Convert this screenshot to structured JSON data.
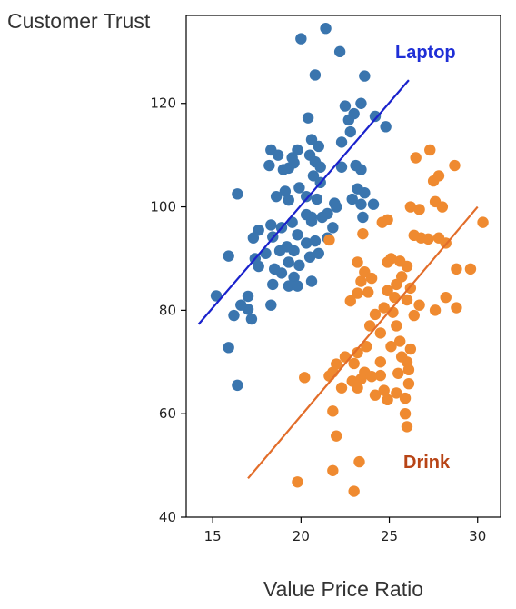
{
  "chart_data": {
    "type": "scatter",
    "title": "",
    "xlabel": "Value Price Ratio",
    "ylabel": "Customer Trust",
    "xlim": [
      13.5,
      31.3
    ],
    "ylim": [
      40,
      137
    ],
    "xticks": [
      15,
      20,
      25,
      30
    ],
    "yticks": [
      40,
      60,
      80,
      100,
      120
    ],
    "grid": false,
    "series": [
      {
        "name": "Laptop",
        "color": "#3a75ae",
        "label_color": "#1f2fd6",
        "fit_color": "#1a22cc",
        "fit_line": {
          "x": [
            14.2,
            26.1
          ],
          "y": [
            77.3,
            124.5
          ]
        },
        "points": [
          [
            20.0,
            132.5
          ],
          [
            21.4,
            134.5
          ],
          [
            22.2,
            130.0
          ],
          [
            20.8,
            125.5
          ],
          [
            23.6,
            125.3
          ],
          [
            22.5,
            119.5
          ],
          [
            23.4,
            120.0
          ],
          [
            23.0,
            118.0
          ],
          [
            22.7,
            116.8
          ],
          [
            24.2,
            117.5
          ],
          [
            24.8,
            115.5
          ],
          [
            20.4,
            117.2
          ],
          [
            22.8,
            114.5
          ],
          [
            22.3,
            112.5
          ],
          [
            21.0,
            111.7
          ],
          [
            19.8,
            111.0
          ],
          [
            20.6,
            113.0
          ],
          [
            18.3,
            111.0
          ],
          [
            18.7,
            110.0
          ],
          [
            19.5,
            109.5
          ],
          [
            19.3,
            107.5
          ],
          [
            18.2,
            108.0
          ],
          [
            19.0,
            107.2
          ],
          [
            20.5,
            110.0
          ],
          [
            20.8,
            108.7
          ],
          [
            21.1,
            107.7
          ],
          [
            19.6,
            108.5
          ],
          [
            22.3,
            107.7
          ],
          [
            23.1,
            108.0
          ],
          [
            23.4,
            107.2
          ],
          [
            20.7,
            106.0
          ],
          [
            21.1,
            104.7
          ],
          [
            19.9,
            103.7
          ],
          [
            20.3,
            102.0
          ],
          [
            19.1,
            103.0
          ],
          [
            18.6,
            102.0
          ],
          [
            19.3,
            101.3
          ],
          [
            20.9,
            101.5
          ],
          [
            21.9,
            100.7
          ],
          [
            23.2,
            103.5
          ],
          [
            23.6,
            102.7
          ],
          [
            22.9,
            101.5
          ],
          [
            23.4,
            100.5
          ],
          [
            24.1,
            100.5
          ],
          [
            21.5,
            98.7
          ],
          [
            21.2,
            98.0
          ],
          [
            20.6,
            98.0
          ],
          [
            20.3,
            98.5
          ],
          [
            20.6,
            97.2
          ],
          [
            19.5,
            97.0
          ],
          [
            18.9,
            96.0
          ],
          [
            18.3,
            96.5
          ],
          [
            18.4,
            94.2
          ],
          [
            17.6,
            95.5
          ],
          [
            17.3,
            94.0
          ],
          [
            16.4,
            102.5
          ],
          [
            19.8,
            94.6
          ],
          [
            20.3,
            93.0
          ],
          [
            20.8,
            93.4
          ],
          [
            21.5,
            94.0
          ],
          [
            19.2,
            92.3
          ],
          [
            18.8,
            91.5
          ],
          [
            19.6,
            91.5
          ],
          [
            18.0,
            91.0
          ],
          [
            17.4,
            90.0
          ],
          [
            17.6,
            88.5
          ],
          [
            18.5,
            88.0
          ],
          [
            19.3,
            89.3
          ],
          [
            19.9,
            88.7
          ],
          [
            20.5,
            90.3
          ],
          [
            21.0,
            91.0
          ],
          [
            18.9,
            87.2
          ],
          [
            19.6,
            86.4
          ],
          [
            18.4,
            85.0
          ],
          [
            19.3,
            84.7
          ],
          [
            19.8,
            84.7
          ],
          [
            20.6,
            85.6
          ],
          [
            15.9,
            90.5
          ],
          [
            15.2,
            82.8
          ],
          [
            17.0,
            82.7
          ],
          [
            17.0,
            80.2
          ],
          [
            16.6,
            81.0
          ],
          [
            18.3,
            81.0
          ],
          [
            16.2,
            79.0
          ],
          [
            17.2,
            78.3
          ],
          [
            15.9,
            72.8
          ],
          [
            16.4,
            65.5
          ],
          [
            22.0,
            100.0
          ],
          [
            23.5,
            98.0
          ],
          [
            21.8,
            96.0
          ]
        ]
      },
      {
        "name": "Drink",
        "color": "#ef8a30",
        "label_color": "#b84416",
        "fit_color": "#e26d2a",
        "fit_line": {
          "x": [
            17.0,
            30.0
          ],
          "y": [
            47.5,
            100.0
          ]
        },
        "points": [
          [
            26.5,
            109.5
          ],
          [
            27.3,
            111.0
          ],
          [
            28.7,
            108.0
          ],
          [
            27.8,
            106.0
          ],
          [
            27.5,
            105.0
          ],
          [
            26.2,
            100.0
          ],
          [
            26.7,
            99.5
          ],
          [
            27.6,
            101.0
          ],
          [
            24.6,
            97.0
          ],
          [
            24.9,
            97.5
          ],
          [
            28.0,
            100.0
          ],
          [
            26.4,
            94.5
          ],
          [
            26.8,
            94.0
          ],
          [
            27.2,
            93.8
          ],
          [
            27.8,
            94.0
          ],
          [
            28.2,
            93.0
          ],
          [
            30.3,
            97.0
          ],
          [
            23.5,
            94.8
          ],
          [
            21.6,
            93.6
          ],
          [
            25.1,
            90.0
          ],
          [
            24.9,
            89.3
          ],
          [
            25.6,
            89.5
          ],
          [
            26.0,
            88.5
          ],
          [
            28.8,
            88.0
          ],
          [
            29.6,
            88.0
          ],
          [
            23.2,
            89.3
          ],
          [
            23.6,
            87.4
          ],
          [
            24.0,
            86.2
          ],
          [
            23.4,
            85.6
          ],
          [
            23.8,
            83.5
          ],
          [
            23.2,
            83.3
          ],
          [
            22.8,
            81.8
          ],
          [
            25.7,
            86.5
          ],
          [
            25.4,
            85.0
          ],
          [
            26.2,
            84.3
          ],
          [
            24.9,
            83.8
          ],
          [
            25.3,
            82.5
          ],
          [
            26.0,
            82.0
          ],
          [
            28.2,
            82.5
          ],
          [
            26.7,
            81.0
          ],
          [
            27.6,
            80.0
          ],
          [
            28.8,
            80.5
          ],
          [
            24.7,
            80.5
          ],
          [
            25.2,
            79.6
          ],
          [
            24.2,
            79.2
          ],
          [
            23.9,
            77.0
          ],
          [
            25.4,
            77.0
          ],
          [
            24.5,
            75.6
          ],
          [
            26.4,
            79.0
          ],
          [
            25.6,
            74.0
          ],
          [
            25.1,
            73.0
          ],
          [
            26.2,
            72.5
          ],
          [
            23.7,
            73.0
          ],
          [
            23.2,
            71.8
          ],
          [
            22.5,
            71.0
          ],
          [
            23.0,
            69.7
          ],
          [
            24.5,
            70.0
          ],
          [
            25.7,
            71.0
          ],
          [
            26.0,
            70.0
          ],
          [
            22.0,
            69.6
          ],
          [
            21.8,
            68.0
          ],
          [
            23.6,
            68.0
          ],
          [
            24.0,
            67.2
          ],
          [
            23.4,
            66.7
          ],
          [
            24.5,
            67.4
          ],
          [
            25.5,
            67.8
          ],
          [
            26.1,
            68.5
          ],
          [
            20.2,
            67.0
          ],
          [
            21.6,
            67.3
          ],
          [
            22.9,
            66.3
          ],
          [
            23.2,
            65.0
          ],
          [
            22.3,
            65.0
          ],
          [
            24.7,
            64.5
          ],
          [
            26.1,
            65.8
          ],
          [
            25.4,
            64.0
          ],
          [
            24.2,
            63.6
          ],
          [
            25.9,
            63.0
          ],
          [
            24.9,
            62.7
          ],
          [
            21.8,
            60.5
          ],
          [
            25.9,
            60.0
          ],
          [
            26.0,
            57.5
          ],
          [
            22.0,
            55.7
          ],
          [
            23.3,
            50.7
          ],
          [
            21.8,
            49.0
          ],
          [
            19.8,
            46.8
          ],
          [
            23.0,
            45.0
          ]
        ]
      }
    ]
  }
}
